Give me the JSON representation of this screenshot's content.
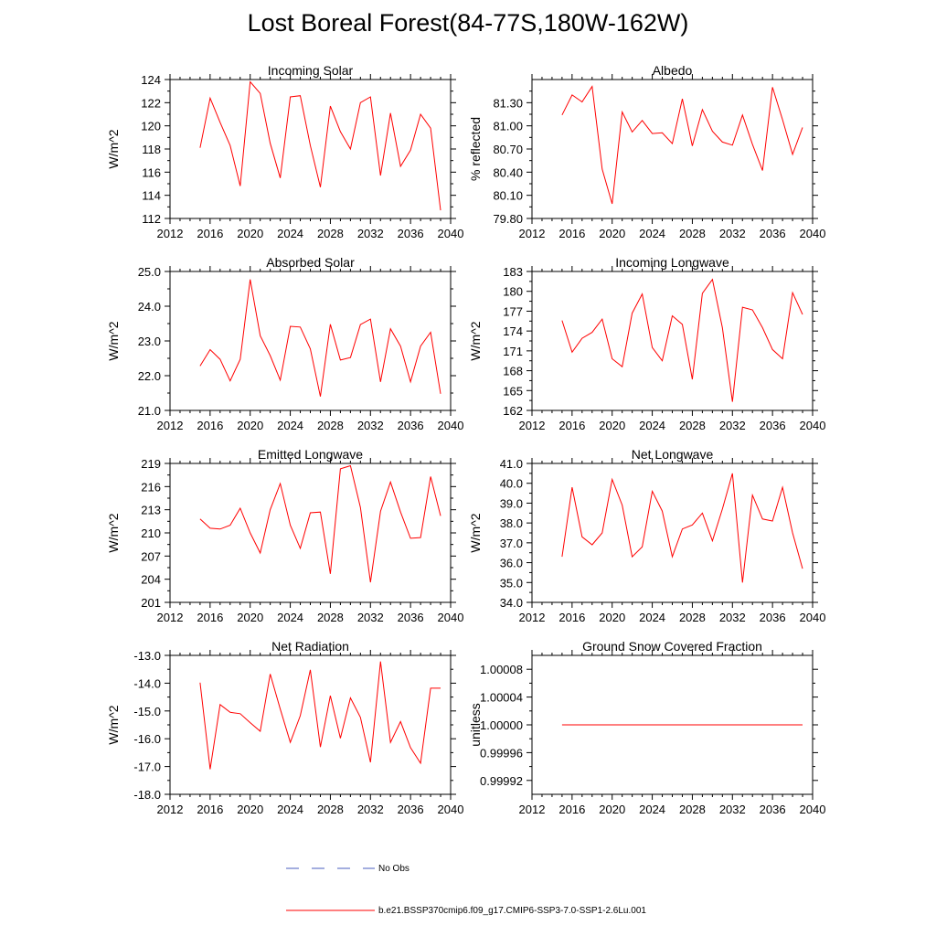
{
  "title": "Lost Boreal Forest(84-77S,180W-162W)",
  "colors": {
    "model": "#ff0000",
    "obs": "#4a5dbf",
    "axis": "#000000"
  },
  "legend": {
    "obs_label": "No Obs",
    "model_label": "b.e21.BSSP370cmip6.f09_g17.CMIP6-SSP3-7.0-SSP1-2.6Lu.001"
  },
  "chart_data": [
    {
      "type": "line",
      "title": "Incoming Solar",
      "ylabel": "W/m^2",
      "xlim": [
        2012,
        2040
      ],
      "xticks": [
        2012,
        2016,
        2020,
        2024,
        2028,
        2032,
        2036,
        2040
      ],
      "ylim": [
        112,
        124
      ],
      "yticks": [
        "112",
        "114",
        "116",
        "118",
        "120",
        "122",
        "124"
      ],
      "series": [
        {
          "x": [
            2015,
            2016,
            2017,
            2018,
            2019,
            2020,
            2021,
            2022,
            2023,
            2024,
            2025,
            2026,
            2027,
            2028,
            2029,
            2030,
            2031,
            2032,
            2033,
            2034,
            2035,
            2036,
            2037,
            2038,
            2039
          ],
          "values": [
            118.1,
            122.4,
            120.3,
            118.3,
            114.8,
            123.8,
            122.8,
            118.5,
            115.5,
            122.5,
            122.6,
            118.3,
            114.7,
            121.7,
            119.5,
            118.0,
            122.0,
            122.5,
            115.7,
            121.1,
            116.5,
            117.9,
            121.0,
            119.8,
            112.7
          ]
        }
      ]
    },
    {
      "type": "line",
      "title": "Albedo",
      "ylabel": "% reflected",
      "xlim": [
        2012,
        2040
      ],
      "xticks": [
        2012,
        2016,
        2020,
        2024,
        2028,
        2032,
        2036,
        2040
      ],
      "ylim": [
        79.8,
        81.6
      ],
      "yticks": [
        "79.80",
        "80.10",
        "80.40",
        "80.70",
        "81.00",
        "81.30"
      ],
      "series": [
        {
          "x": [
            2015,
            2016,
            2017,
            2018,
            2019,
            2020,
            2021,
            2022,
            2023,
            2024,
            2025,
            2026,
            2027,
            2028,
            2029,
            2030,
            2031,
            2032,
            2033,
            2034,
            2035,
            2036,
            2037,
            2038,
            2039
          ],
          "values": [
            81.14,
            81.4,
            81.31,
            81.51,
            80.44,
            79.99,
            81.18,
            80.92,
            81.07,
            80.9,
            80.91,
            80.77,
            81.35,
            80.74,
            81.21,
            80.93,
            80.79,
            80.75,
            81.14,
            80.76,
            80.42,
            81.5,
            81.08,
            80.63,
            80.98
          ]
        }
      ]
    },
    {
      "type": "line",
      "title": "Absorbed Solar",
      "ylabel": "W/m^2",
      "xlim": [
        2012,
        2040
      ],
      "xticks": [
        2012,
        2016,
        2020,
        2024,
        2028,
        2032,
        2036,
        2040
      ],
      "ylim": [
        21.0,
        25.0
      ],
      "yticks": [
        "21.0",
        "22.0",
        "23.0",
        "24.0",
        "25.0"
      ],
      "series": [
        {
          "x": [
            2015,
            2016,
            2017,
            2018,
            2019,
            2020,
            2021,
            2022,
            2023,
            2024,
            2025,
            2026,
            2027,
            2028,
            2029,
            2030,
            2031,
            2032,
            2033,
            2034,
            2035,
            2036,
            2037,
            2038,
            2039
          ],
          "values": [
            22.28,
            22.75,
            22.47,
            21.85,
            22.47,
            24.77,
            23.15,
            22.58,
            21.87,
            23.42,
            23.4,
            22.77,
            21.4,
            23.48,
            22.45,
            22.52,
            23.47,
            23.63,
            21.82,
            23.35,
            22.85,
            21.82,
            22.85,
            23.25,
            21.48
          ]
        }
      ]
    },
    {
      "type": "line",
      "title": "Incoming Longwave",
      "ylabel": "W/m^2",
      "xlim": [
        2012,
        2040
      ],
      "xticks": [
        2012,
        2016,
        2020,
        2024,
        2028,
        2032,
        2036,
        2040
      ],
      "ylim": [
        162,
        183
      ],
      "yticks": [
        "162",
        "165",
        "168",
        "171",
        "174",
        "177",
        "180",
        "183"
      ],
      "series": [
        {
          "x": [
            2015,
            2016,
            2017,
            2018,
            2019,
            2020,
            2021,
            2022,
            2023,
            2024,
            2025,
            2026,
            2027,
            2028,
            2029,
            2030,
            2031,
            2032,
            2033,
            2034,
            2035,
            2036,
            2037,
            2038,
            2039
          ],
          "values": [
            175.6,
            170.8,
            172.9,
            173.8,
            175.8,
            169.8,
            168.6,
            176.7,
            179.6,
            171.5,
            169.5,
            176.3,
            175.0,
            166.7,
            179.7,
            181.8,
            174.5,
            163.3,
            177.6,
            177.2,
            174.5,
            171.2,
            169.8,
            179.8,
            176.5
          ]
        }
      ]
    },
    {
      "type": "line",
      "title": "Emitted Longwave",
      "ylabel": "W/m^2",
      "xlim": [
        2012,
        2040
      ],
      "xticks": [
        2012,
        2016,
        2020,
        2024,
        2028,
        2032,
        2036,
        2040
      ],
      "ylim": [
        201,
        219
      ],
      "yticks": [
        "201",
        "204",
        "207",
        "210",
        "213",
        "216",
        "219"
      ],
      "series": [
        {
          "x": [
            2015,
            2016,
            2017,
            2018,
            2019,
            2020,
            2021,
            2022,
            2023,
            2024,
            2025,
            2026,
            2027,
            2028,
            2029,
            2030,
            2031,
            2032,
            2033,
            2034,
            2035,
            2036,
            2037,
            2038,
            2039
          ],
          "values": [
            211.8,
            210.6,
            210.5,
            211.0,
            213.2,
            210.0,
            207.4,
            213.0,
            216.4,
            211.0,
            208.0,
            212.6,
            212.7,
            204.7,
            218.3,
            218.7,
            213.3,
            203.6,
            212.8,
            216.6,
            212.7,
            209.3,
            209.4,
            217.3,
            212.2
          ]
        }
      ]
    },
    {
      "type": "line",
      "title": "Net Longwave",
      "ylabel": "W/m^2",
      "xlim": [
        2012,
        2040
      ],
      "xticks": [
        2012,
        2016,
        2020,
        2024,
        2028,
        2032,
        2036,
        2040
      ],
      "ylim": [
        34.0,
        41.0
      ],
      "yticks": [
        "34.0",
        "35.0",
        "36.0",
        "37.0",
        "38.0",
        "39.0",
        "40.0",
        "41.0"
      ],
      "series": [
        {
          "x": [
            2015,
            2016,
            2017,
            2018,
            2019,
            2020,
            2021,
            2022,
            2023,
            2024,
            2025,
            2026,
            2027,
            2028,
            2029,
            2030,
            2031,
            2032,
            2033,
            2034,
            2035,
            2036,
            2037,
            2038,
            2039
          ],
          "values": [
            36.3,
            39.8,
            37.3,
            36.9,
            37.5,
            40.2,
            38.9,
            36.3,
            36.8,
            39.6,
            38.6,
            36.3,
            37.7,
            37.9,
            38.5,
            37.1,
            38.7,
            40.5,
            35.0,
            39.4,
            38.2,
            38.1,
            39.8,
            37.5,
            35.7
          ]
        }
      ]
    },
    {
      "type": "line",
      "title": "Net Radiation",
      "ylabel": "W/m^2",
      "xlim": [
        2012,
        2040
      ],
      "xticks": [
        2012,
        2016,
        2020,
        2024,
        2028,
        2032,
        2036,
        2040
      ],
      "ylim": [
        -18.0,
        -13.0
      ],
      "yticks": [
        "-18.0",
        "-17.0",
        "-16.0",
        "-15.0",
        "-14.0",
        "-13.0"
      ],
      "series": [
        {
          "x": [
            2015,
            2016,
            2017,
            2018,
            2019,
            2020,
            2021,
            2022,
            2023,
            2024,
            2025,
            2026,
            2027,
            2028,
            2029,
            2030,
            2031,
            2032,
            2033,
            2034,
            2035,
            2036,
            2037,
            2038,
            2039
          ],
          "values": [
            -13.98,
            -17.1,
            -14.77,
            -15.05,
            -15.1,
            -15.42,
            -15.73,
            -13.67,
            -14.93,
            -16.13,
            -15.17,
            -13.52,
            -16.3,
            -14.45,
            -15.98,
            -14.53,
            -15.23,
            -16.85,
            -13.22,
            -16.13,
            -15.38,
            -16.32,
            -16.88,
            -14.18,
            -14.18
          ]
        }
      ]
    },
    {
      "type": "line",
      "title": "Ground Snow Covered Fraction",
      "ylabel": "unitless",
      "xlim": [
        2012,
        2040
      ],
      "xticks": [
        2012,
        2016,
        2020,
        2024,
        2028,
        2032,
        2036,
        2040
      ],
      "ylim": [
        0.9999,
        1.0001
      ],
      "yticks": [
        "0.99992",
        "0.99996",
        "1.00000",
        "1.00004",
        "1.00008"
      ],
      "ytick_values": [
        0.99992,
        0.99996,
        1.0,
        1.00004,
        1.00008
      ],
      "series": [
        {
          "x": [
            2015,
            2016,
            2017,
            2018,
            2019,
            2020,
            2021,
            2022,
            2023,
            2024,
            2025,
            2026,
            2027,
            2028,
            2029,
            2030,
            2031,
            2032,
            2033,
            2034,
            2035,
            2036,
            2037,
            2038,
            2039
          ],
          "values": [
            1,
            1,
            1,
            1,
            1,
            1,
            1,
            1,
            1,
            1,
            1,
            1,
            1,
            1,
            1,
            1,
            1,
            1,
            1,
            1,
            1,
            1,
            1,
            1,
            1
          ]
        }
      ]
    }
  ]
}
